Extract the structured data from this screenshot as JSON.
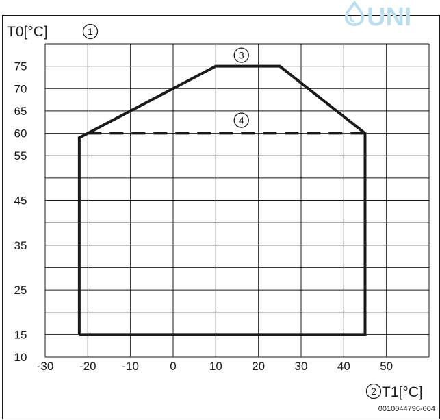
{
  "logo": {
    "text": "UNI",
    "color": "#bcdff0"
  },
  "figure_code": "0010044796-004",
  "chart_data": {
    "type": "line",
    "title": "",
    "ylabel": "T0[°C]",
    "xlabel": "T1[°C]",
    "ylabel_callout": "1",
    "xlabel_callout": "2",
    "xlim": [
      -30,
      60
    ],
    "ylim": [
      10,
      80
    ],
    "xticks": [
      -30,
      -20,
      -10,
      0,
      10,
      20,
      30,
      40,
      50
    ],
    "yticks": [
      10,
      15,
      25,
      35,
      45,
      55,
      60,
      65,
      70,
      75
    ],
    "grid": true,
    "series": [
      {
        "style": "solid",
        "color": "#1a1a1a",
        "callout": "3",
        "points": [
          [
            -22,
            15
          ],
          [
            -22,
            59
          ],
          [
            -20,
            60
          ],
          [
            10,
            75
          ],
          [
            25,
            75
          ],
          [
            45,
            60
          ],
          [
            45,
            15
          ],
          [
            -22,
            15
          ]
        ]
      },
      {
        "style": "dashed",
        "color": "#1a1a1a",
        "callout": "4",
        "points": [
          [
            -20,
            60
          ],
          [
            45,
            60
          ]
        ]
      }
    ]
  }
}
